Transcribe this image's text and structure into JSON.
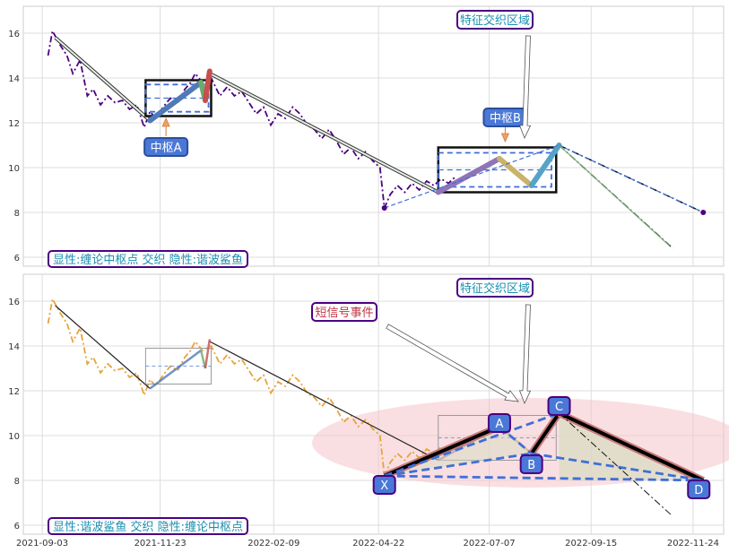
{
  "chart_data": [
    {
      "type": "line",
      "panel": "top",
      "ylim": [
        5.6,
        17.2
      ],
      "xlim": [
        "2021-08-21",
        "2022-12-15"
      ],
      "yticks": [
        6,
        8,
        10,
        12,
        14,
        16
      ],
      "grid": true,
      "price_series": [
        [
          "2021-09-07",
          15.0
        ],
        [
          "2021-09-10",
          16.1
        ],
        [
          "2021-09-15",
          15.5
        ],
        [
          "2021-09-20",
          15.0
        ],
        [
          "2021-09-24",
          14.2
        ],
        [
          "2021-09-29",
          14.8
        ],
        [
          "2021-10-04",
          13.2
        ],
        [
          "2021-10-08",
          13.5
        ],
        [
          "2021-10-13",
          12.8
        ],
        [
          "2021-10-18",
          13.2
        ],
        [
          "2021-10-23",
          12.9
        ],
        [
          "2021-10-28",
          13.0
        ],
        [
          "2021-11-02",
          12.6
        ],
        [
          "2021-11-07",
          12.8
        ],
        [
          "2021-11-12",
          11.8
        ],
        [
          "2021-11-16",
          12.5
        ],
        [
          "2021-11-20",
          12.2
        ],
        [
          "2021-11-25",
          12.7
        ],
        [
          "2021-11-30",
          13.1
        ],
        [
          "2021-12-05",
          12.9
        ],
        [
          "2021-12-10",
          13.5
        ],
        [
          "2021-12-14",
          13.8
        ],
        [
          "2021-12-17",
          14.2
        ],
        [
          "2021-12-22",
          13.8
        ],
        [
          "2021-12-28",
          14.0
        ],
        [
          "2022-01-03",
          13.2
        ],
        [
          "2022-01-08",
          13.6
        ],
        [
          "2022-01-13",
          13.2
        ],
        [
          "2022-01-18",
          13.4
        ],
        [
          "2022-01-23",
          12.9
        ],
        [
          "2022-01-28",
          12.4
        ],
        [
          "2022-02-02",
          12.7
        ],
        [
          "2022-02-07",
          11.9
        ],
        [
          "2022-02-12",
          12.4
        ],
        [
          "2022-02-17",
          12.2
        ],
        [
          "2022-02-22",
          12.7
        ],
        [
          "2022-02-27",
          12.4
        ],
        [
          "2022-03-04",
          11.9
        ],
        [
          "2022-03-09",
          11.7
        ],
        [
          "2022-03-14",
          11.3
        ],
        [
          "2022-03-19",
          11.7
        ],
        [
          "2022-03-24",
          11.2
        ],
        [
          "2022-03-29",
          10.6
        ],
        [
          "2022-04-03",
          10.9
        ],
        [
          "2022-04-08",
          10.4
        ],
        [
          "2022-04-13",
          10.7
        ],
        [
          "2022-04-18",
          10.3
        ],
        [
          "2022-04-23",
          10.0
        ],
        [
          "2022-04-26",
          8.2
        ],
        [
          "2022-04-30",
          8.8
        ],
        [
          "2022-05-05",
          9.2
        ],
        [
          "2022-05-10",
          8.9
        ],
        [
          "2022-05-15",
          9.3
        ],
        [
          "2022-05-20",
          9.0
        ],
        [
          "2022-05-25",
          9.4
        ],
        [
          "2022-05-30",
          9.2
        ],
        [
          "2022-06-04",
          9.5
        ],
        [
          "2022-06-09",
          9.3
        ],
        [
          "2022-06-14",
          9.6
        ]
      ],
      "strokes": [
        [
          "2021-09-12",
          15.8,
          "2021-11-16",
          12.1
        ],
        [
          "2021-12-27",
          14.2,
          "2022-06-02",
          8.9
        ]
      ],
      "bi_segments": [
        [
          "2021-11-16",
          12.1,
          "2021-12-21",
          13.8,
          "#5079b8"
        ],
        [
          "2021-12-21",
          13.8,
          "2021-12-24",
          13.0,
          "#6aaa6a"
        ],
        [
          "2021-12-24",
          13.0,
          "2021-12-27",
          14.3,
          "#c84e4e"
        ],
        [
          "2022-06-02",
          8.9,
          "2022-07-14",
          10.4,
          "#8f75b6"
        ],
        [
          "2022-07-14",
          10.4,
          "2022-08-05",
          9.2,
          "#c9b36a"
        ],
        [
          "2022-08-05",
          9.2,
          "2022-08-24",
          11.0,
          "#56a3c9"
        ]
      ],
      "zhongshu": [
        {
          "label": "中枢A",
          "x0": "2021-11-13",
          "x1": "2021-12-28",
          "y0": 12.3,
          "y1": 13.9
        },
        {
          "label": "中枢B",
          "x0": "2022-06-02",
          "x1": "2022-08-22",
          "y0": 8.9,
          "y1": 10.9
        }
      ],
      "projections": [
        {
          "x0": "2022-08-24",
          "y0": 11.0,
          "x1": "2022-12-01",
          "y1": 8.0,
          "style": "dashdot-black"
        },
        {
          "x0": "2022-08-24",
          "y0": 11.0,
          "x1": "2022-11-10",
          "y1": 6.4,
          "style": "dashdot-black"
        },
        {
          "x0": "2022-04-26",
          "y0": 8.2,
          "x1": "2022-08-24",
          "y1": 11.0,
          "style": "dashed-blue"
        },
        {
          "x0": "2022-08-24",
          "y0": 11.0,
          "x1": "2022-12-01",
          "y1": 8.0,
          "style": "dashed-blue"
        }
      ],
      "annotations": {
        "feature_region": "特征交织区域",
        "center_a": "中枢A",
        "center_b": "中枢B",
        "caption": "显性:缠论中枢点 交织 隐性:谐波鲨鱼"
      },
      "colors": {
        "price": "#4b0082",
        "zhongshu_fill": "#3f6fd8"
      }
    },
    {
      "type": "line",
      "panel": "bottom",
      "ylim": [
        5.6,
        17.2
      ],
      "xlim": [
        "2021-08-21",
        "2022-12-15"
      ],
      "yticks": [
        6,
        8,
        10,
        12,
        14,
        16
      ],
      "xticks": [
        "2021-09-03",
        "2021-11-23",
        "2022-02-09",
        "2022-04-22",
        "2022-07-07",
        "2022-09-15",
        "2022-11-24"
      ],
      "grid": true,
      "harmonic_points": [
        {
          "label": "X",
          "date": "2022-04-26",
          "value": 8.2
        },
        {
          "label": "A",
          "date": "2022-07-14",
          "value": 10.4
        },
        {
          "label": "B",
          "date": "2022-08-05",
          "value": 9.2
        },
        {
          "label": "C",
          "date": "2022-08-24",
          "value": 11.0
        },
        {
          "label": "D",
          "date": "2022-12-01",
          "value": 8.0
        }
      ],
      "annotations": {
        "feature_region": "特征交织区域",
        "short_signal": "短信号事件",
        "caption": "显性:谐波鲨鱼 交织 隐性:缠论中枢点"
      },
      "colors": {
        "price": "#e8a33a",
        "pattern_line": "#000000",
        "ellipse": "#f0b6bd"
      }
    }
  ]
}
